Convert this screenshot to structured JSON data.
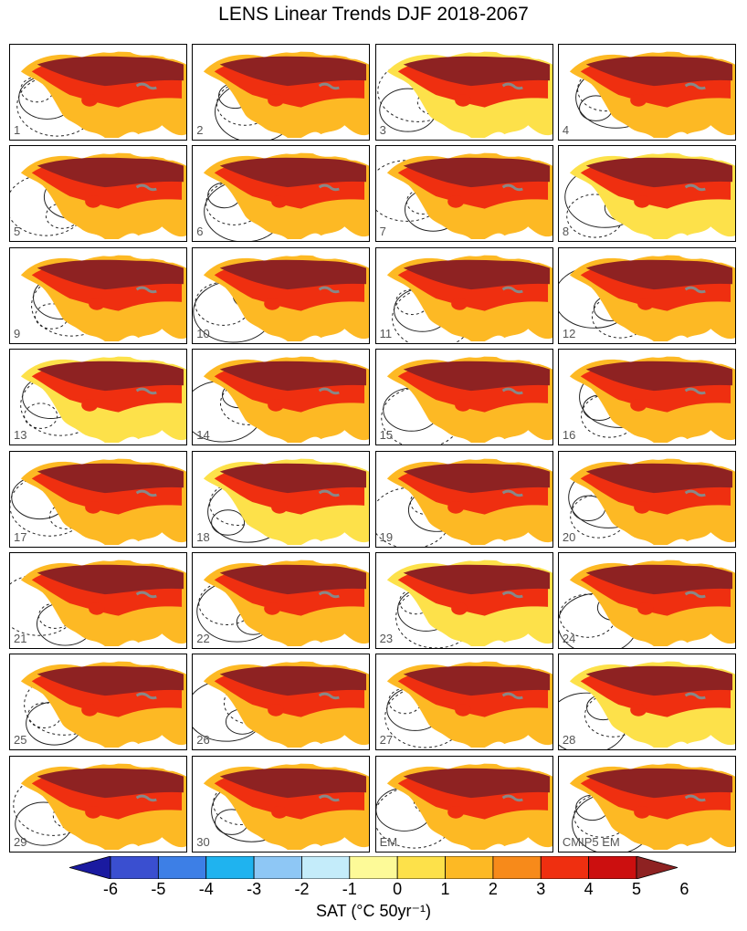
{
  "title": "LENS Linear Trends DJF 2018-2067",
  "chart_data": {
    "type": "heatmap",
    "title": "LENS Linear Trends DJF 2018-2067",
    "panels": [
      "1",
      "2",
      "3",
      "4",
      "5",
      "6",
      "7",
      "8",
      "9",
      "10",
      "11",
      "12",
      "13",
      "14",
      "15",
      "16",
      "17",
      "18",
      "19",
      "20",
      "21",
      "22",
      "23",
      "24",
      "25",
      "26",
      "27",
      "28",
      "29",
      "30",
      "EM",
      "CMIP5 EM"
    ],
    "layout": "8 rows x 4 columns",
    "colorbar": {
      "label": "SAT (°C 50yr⁻¹)",
      "ticks": [
        "-6",
        "-5",
        "-4",
        "-3",
        "-2",
        "-1",
        "0",
        "1",
        "2",
        "3",
        "4",
        "5",
        "6"
      ],
      "levels": [
        -6,
        -5,
        -4,
        -3,
        -2,
        -1,
        0,
        1,
        2,
        3,
        4,
        5,
        6
      ],
      "colors": [
        "#1a1aa0",
        "#3a4fd0",
        "#3d7fe6",
        "#1fb3ef",
        "#8ec7f5",
        "#c4ecfa",
        "#fdfa98",
        "#fde14a",
        "#fdb924",
        "#f78a1a",
        "#ef2f10",
        "#cc0f0f",
        "#8e2222"
      ],
      "extend": "both"
    },
    "contours": "solid = positive, dashed = negative (SLP trend)"
  }
}
